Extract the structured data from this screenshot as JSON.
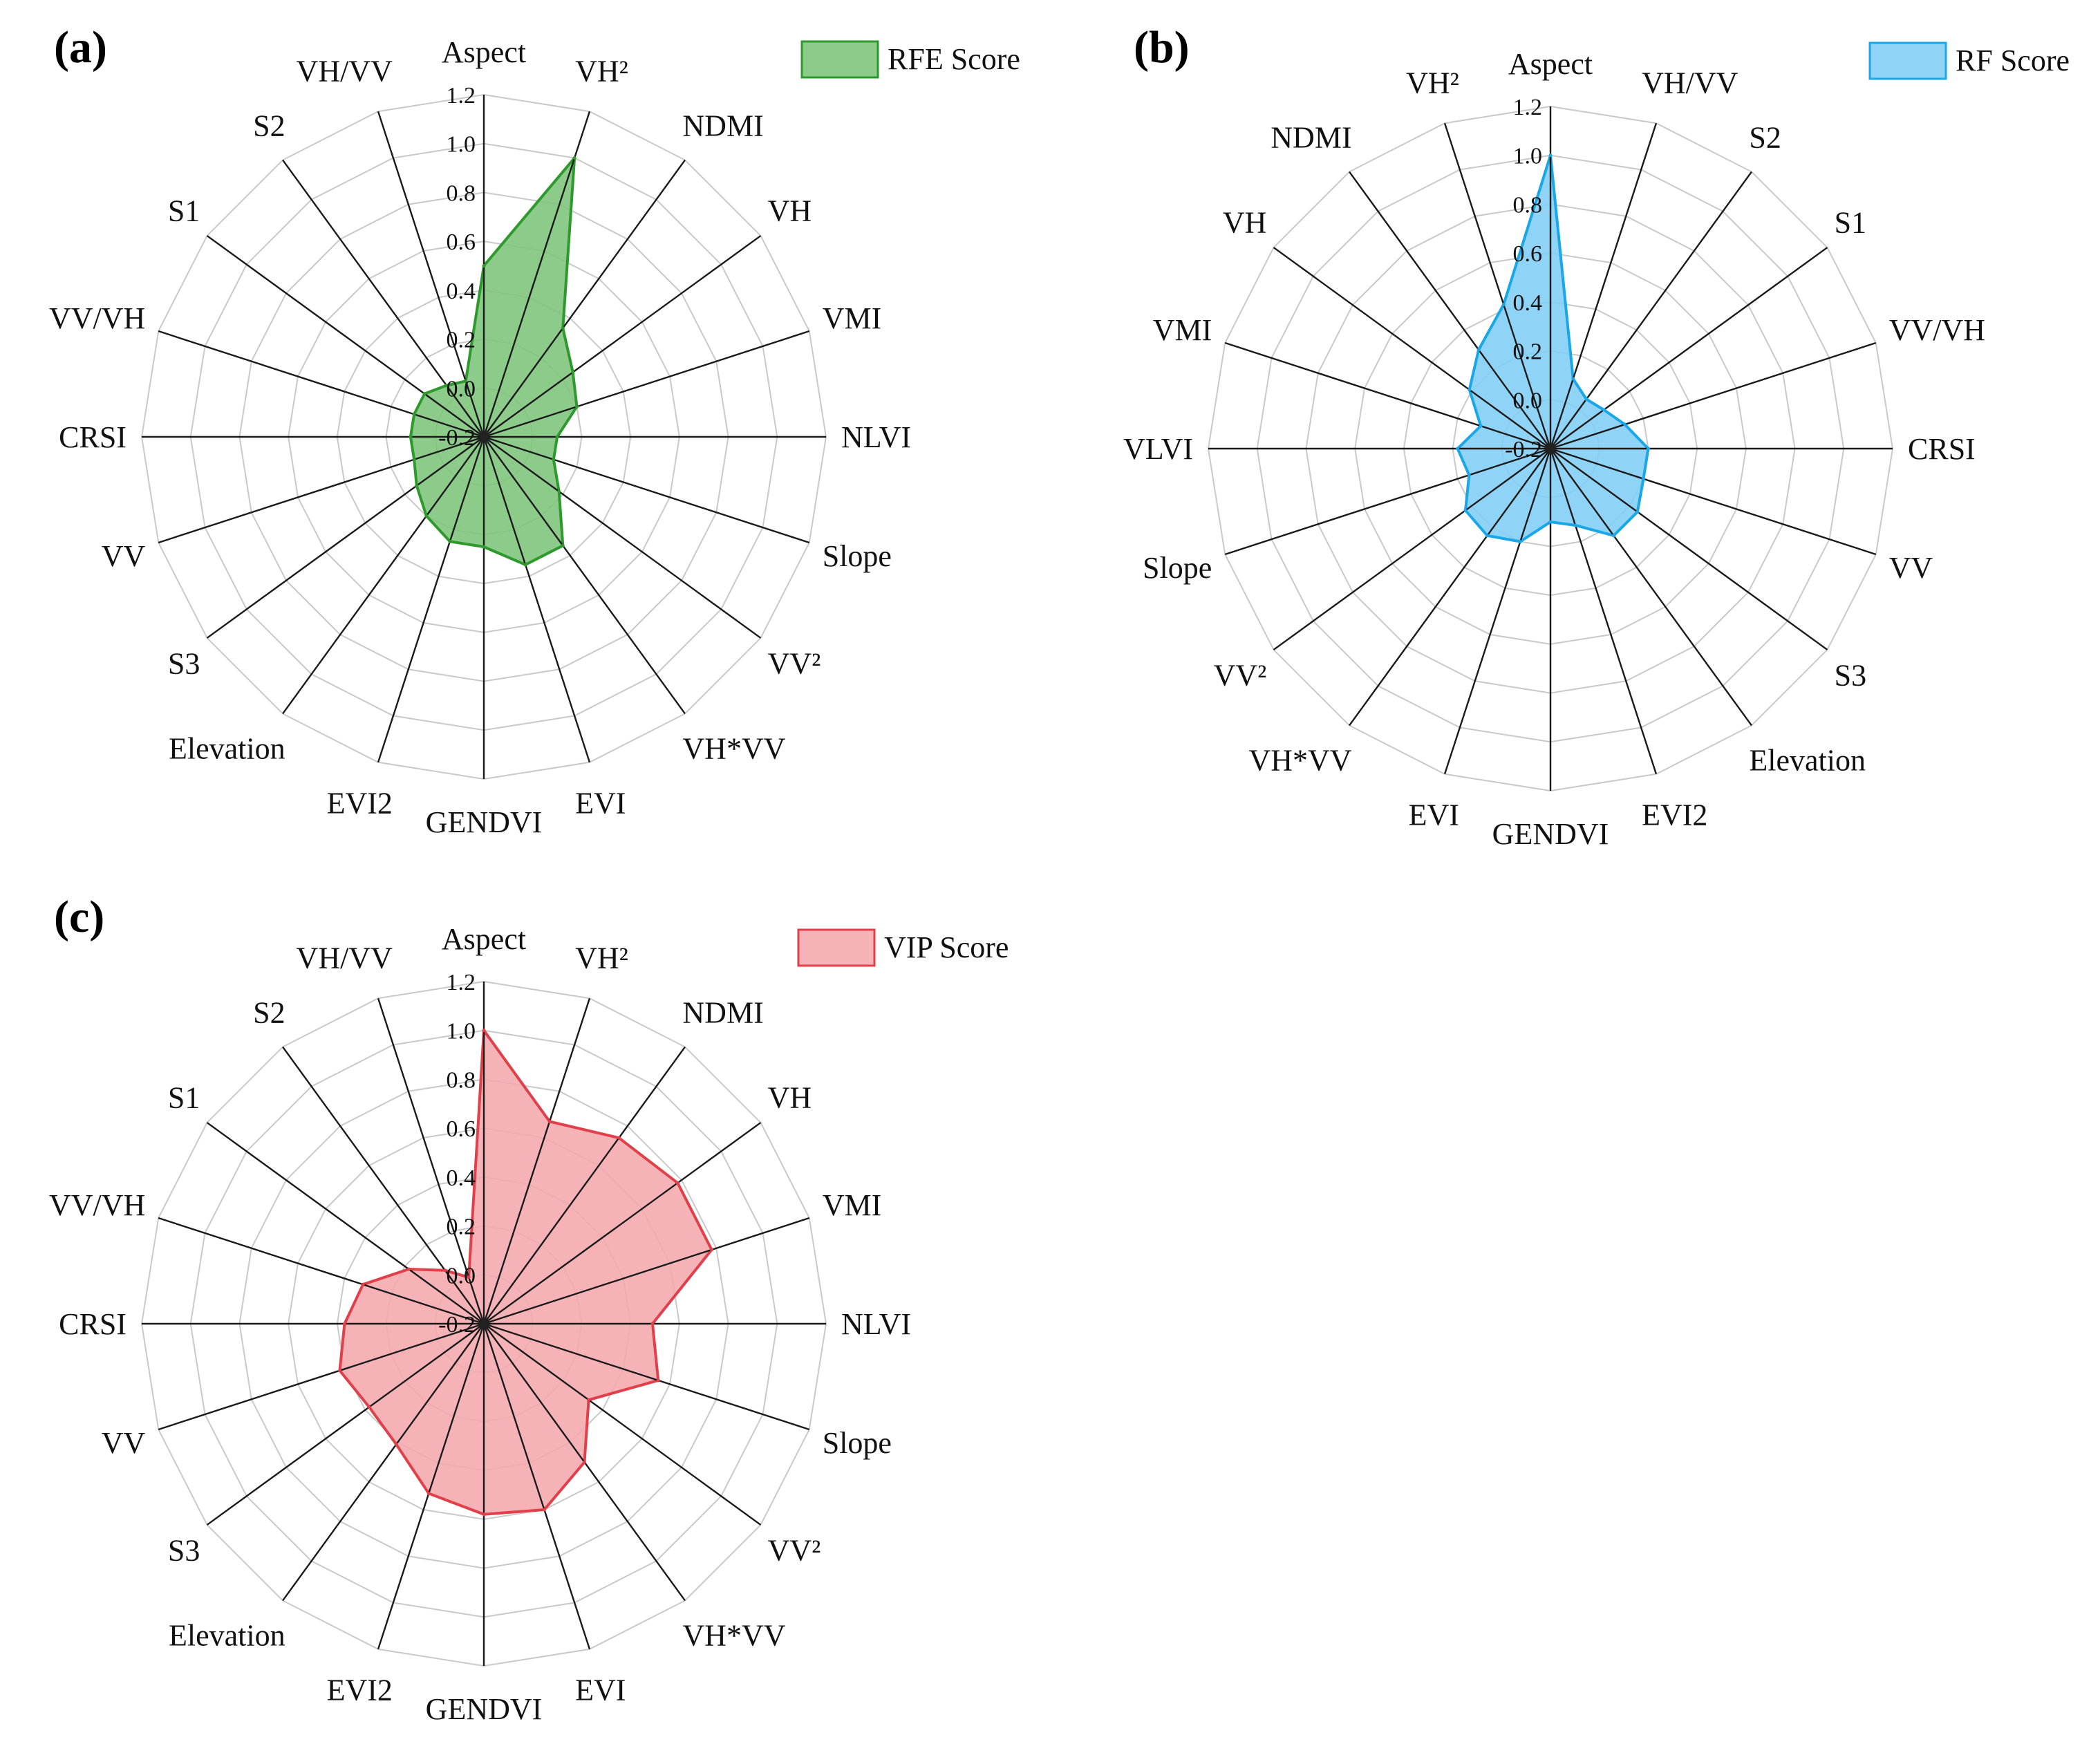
{
  "chart_data": [
    {
      "type": "radar",
      "panel": "(a)",
      "legend": "RFE Score",
      "color": "#2e9a2e",
      "fill": "#7cc47a",
      "axes": [
        "Aspect",
        "VH²",
        "NDMI",
        "VH",
        "VMI",
        "NLVI",
        "Slope",
        "VV²",
        "VH*VV",
        "EVI",
        "GENDVI",
        "EVI2",
        "Elevation",
        "S3",
        "VV",
        "CRSI",
        "VV/VH",
        "S1",
        "S2",
        "VH/VV"
      ],
      "values": [
        0.5,
        1.0,
        0.35,
        0.25,
        0.2,
        0.1,
        0.1,
        0.18,
        0.35,
        0.35,
        0.25,
        0.25,
        0.2,
        0.14,
        0.1,
        0.1,
        0.1,
        0.1,
        0.06,
        0.04
      ],
      "ticks": [
        "-0.2",
        "0.0",
        "0.2",
        "0.4",
        "0.6",
        "0.8",
        "1.0",
        "1.2"
      ],
      "rlim": [
        -0.2,
        1.2
      ]
    },
    {
      "type": "radar",
      "panel": "(b)",
      "legend": "RF Score",
      "color": "#1aa7e8",
      "fill": "#7fcdf5",
      "axes": [
        "Aspect",
        "VH/VV",
        "S2",
        "S1",
        "VV/VH",
        "CRSI",
        "VV",
        "S3",
        "Elevation",
        "EVI2",
        "GENDVI",
        "EVI",
        "VH*VV",
        "VV²",
        "Slope",
        "VLVI",
        "VMI",
        "VH",
        "NDMI",
        "VH²"
      ],
      "values": [
        1.0,
        0.1,
        0.05,
        0.07,
        0.12,
        0.2,
        0.2,
        0.24,
        0.24,
        0.13,
        0.1,
        0.2,
        0.24,
        0.23,
        0.15,
        0.18,
        0.1,
        0.21,
        0.3,
        0.42
      ],
      "ticks": [
        "-0.2",
        "0.0",
        "0.2",
        "0.4",
        "0.6",
        "0.8",
        "1.0",
        "1.2"
      ],
      "rlim": [
        -0.2,
        1.2
      ]
    },
    {
      "type": "radar",
      "panel": "(c)",
      "legend": "VIP Score",
      "color": "#e0404a",
      "fill": "#f5a9ad",
      "axes": [
        "Aspect",
        "VH²",
        "NDMI",
        "VH",
        "VMI",
        "NLVI",
        "Slope",
        "VV²",
        "VH*VV",
        "EVI",
        "GENDVI",
        "EVI2",
        "Elevation",
        "S3",
        "VV",
        "CRSI",
        "VV/VH",
        "S1",
        "S2",
        "VH/VV"
      ],
      "values": [
        1.0,
        0.67,
        0.74,
        0.78,
        0.78,
        0.49,
        0.55,
        0.33,
        0.5,
        0.6,
        0.58,
        0.53,
        0.41,
        0.38,
        0.42,
        0.37,
        0.32,
        0.18,
        0.07,
        0.0
      ],
      "ticks": [
        "-0.2",
        "0.0",
        "0.2",
        "0.4",
        "0.6",
        "0.8",
        "1.0",
        "1.2"
      ],
      "rlim": [
        -0.2,
        1.2
      ]
    }
  ]
}
